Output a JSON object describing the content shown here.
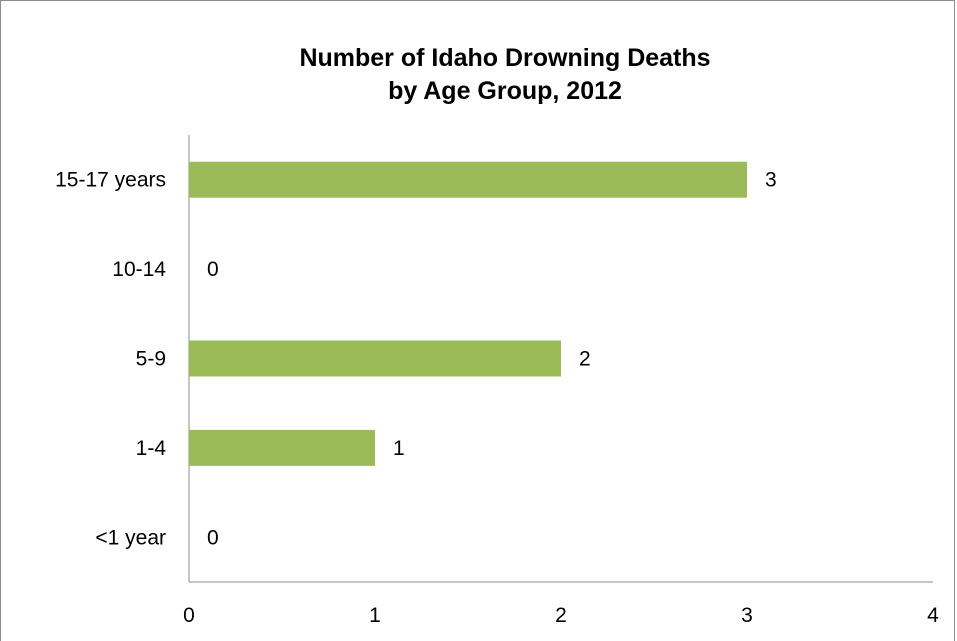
{
  "chart_data": {
    "type": "bar",
    "orientation": "horizontal",
    "title_line1": "Number of Idaho Drowning Deaths",
    "title_line2": "by Age Group, 2012",
    "categories": [
      "15-17 years",
      "10-14",
      "5-9",
      "1-4",
      "<1 year"
    ],
    "values": [
      3,
      0,
      2,
      1,
      0
    ],
    "xlim": [
      0,
      4
    ],
    "xticks": [
      0,
      1,
      2,
      3,
      4
    ],
    "bar_color": "#9bbb59",
    "grid": false,
    "legend": "none"
  }
}
